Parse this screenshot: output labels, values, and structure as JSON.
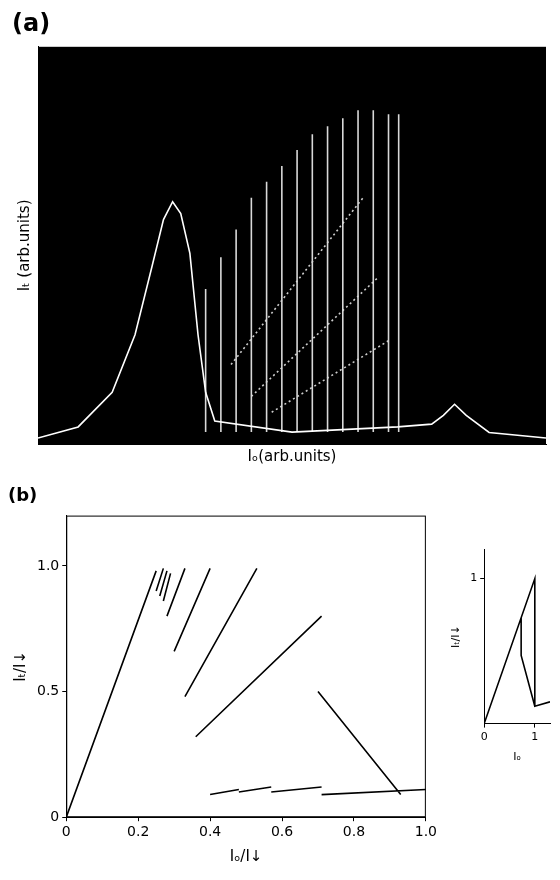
{
  "chart_data": [
    {
      "type": "line",
      "title": "(a)",
      "x_label": "Iₒ(arb.units)",
      "y_label": "Iₜ (arb.units)",
      "xlim": [
        0,
        100
      ],
      "ylim": [
        0,
        100
      ],
      "tick_labels": false,
      "grid": false,
      "series": [
        {
          "color": "#ffffff",
          "line_style": "solid",
          "x": [
            0,
            7.9,
            14.6,
            19.1,
            22.5,
            24.7,
            26.5,
            28.1,
            29.9,
            31.5,
            33,
            34.8,
            50,
            70.8,
            77.5,
            79.8,
            82,
            84.3,
            88.8,
            100
          ],
          "values": [
            1.5,
            4.3,
            13,
            27.5,
            45,
            56.5,
            61,
            58,
            48,
            27.5,
            13,
            5.8,
            3,
            4.3,
            5,
            7.2,
            10,
            7.2,
            2.9,
            1.5
          ]
        },
        {
          "color": "#d9d9d9",
          "line_style": "solid",
          "x": [
            33,
            33,
            null,
            36,
            36,
            null,
            39,
            39,
            null,
            42,
            42,
            null,
            45,
            45,
            null,
            48,
            48,
            null,
            51,
            51,
            null,
            54,
            54,
            null,
            57,
            57,
            null,
            60,
            60,
            null,
            63,
            63,
            null,
            66,
            66,
            null,
            69,
            69,
            null,
            71,
            71
          ],
          "values": [
            3,
            39,
            null,
            3,
            47,
            null,
            3,
            54,
            null,
            3,
            62,
            null,
            3,
            66,
            null,
            3,
            70,
            null,
            3,
            74,
            null,
            3,
            78,
            null,
            3,
            80,
            null,
            3,
            82,
            null,
            3,
            84,
            null,
            3,
            84,
            null,
            3,
            83,
            null,
            3,
            83
          ]
        },
        {
          "color": "#cccccc",
          "line_style": "dotted",
          "x": [
            38,
            64,
            null,
            42,
            67,
            null,
            46,
            69
          ],
          "values": [
            20,
            62,
            null,
            12,
            42,
            null,
            8,
            26
          ]
        }
      ]
    },
    {
      "type": "line",
      "title": "(b)",
      "x_label": "Iₒ/I↓",
      "y_label": "Iₜ/I↓",
      "xlim": [
        0,
        1
      ],
      "ylim": [
        0,
        1.2
      ],
      "xticks": [
        0,
        0.2,
        0.4,
        0.6,
        0.8,
        {
          "value": 1,
          "label": "1.0"
        }
      ],
      "yticks": [
        0,
        0.5,
        {
          "value": 1,
          "label": "1.0"
        }
      ],
      "grid": false,
      "series": [
        {
          "color": "#000000",
          "line_style": "solid",
          "x": [
            0,
            0.25,
            null,
            0.25,
            0.27,
            null,
            0.26,
            0.28,
            null,
            0.27,
            0.29,
            null,
            0.28,
            0.33,
            null,
            0.3,
            0.4,
            null,
            0.33,
            0.53,
            null,
            0.36,
            0.71,
            null,
            0.7,
            0.93,
            null,
            0.4,
            0.48,
            null,
            0.48,
            0.57,
            null,
            0.57,
            0.71,
            null,
            0.71,
            1.0
          ],
          "values": [
            0,
            0.98,
            null,
            0.9,
            0.99,
            null,
            0.88,
            0.98,
            null,
            0.86,
            0.97,
            null,
            0.8,
            0.99,
            null,
            0.66,
            0.99,
            null,
            0.48,
            0.99,
            null,
            0.32,
            0.8,
            null,
            0.5,
            0.09,
            null,
            0.09,
            0.11,
            null,
            0.1,
            0.12,
            null,
            0.1,
            0.12,
            null,
            0.09,
            0.11
          ]
        }
      ]
    },
    {
      "type": "line",
      "x_label": "Iₒ",
      "y_label": "Iₜ/I↓",
      "xlim": [
        0,
        1.3
      ],
      "ylim": [
        0,
        1.2
      ],
      "xticks": [
        0,
        1
      ],
      "yticks": [
        1
      ],
      "grid": false,
      "series": [
        {
          "color": "#000000",
          "line_style": "solid",
          "x": [
            0,
            1,
            1,
            1.3,
            null,
            0.73,
            0.73,
            1
          ],
          "values": [
            0,
            1,
            0.12,
            0.15,
            null,
            0.73,
            0.47,
            0.12
          ]
        }
      ]
    }
  ]
}
